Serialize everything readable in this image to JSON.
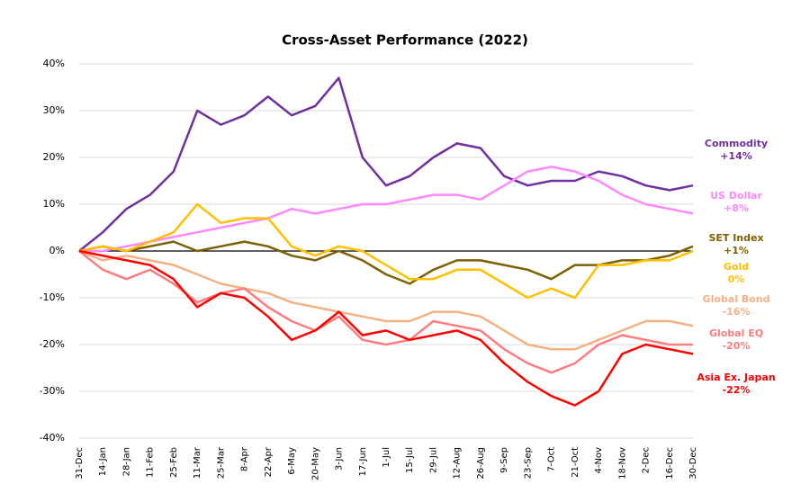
{
  "chart_data": {
    "type": "line",
    "title": "Cross-Asset Performance (2022)",
    "categories": [
      "31-Dec",
      "14-Jan",
      "28-Jan",
      "11-Feb",
      "25-Feb",
      "11-Mar",
      "25-Mar",
      "8-Apr",
      "22-Apr",
      "6-May",
      "20-May",
      "3-Jun",
      "17-Jun",
      "1-Jul",
      "15-Jul",
      "29-Jul",
      "12-Aug",
      "26-Aug",
      "9-Sep",
      "23-Sep",
      "7-Oct",
      "21-Oct",
      "4-Nov",
      "18-Nov",
      "2-Dec",
      "16-Dec",
      "30-Dec"
    ],
    "ylim": [
      -40,
      40
    ],
    "yticks": [
      {
        "value": -40,
        "label": "-40%"
      },
      {
        "value": -30,
        "label": "-30%"
      },
      {
        "value": -20,
        "label": "-20%"
      },
      {
        "value": -10,
        "label": "-10%"
      },
      {
        "value": 0,
        "label": "0%"
      },
      {
        "value": 10,
        "label": "10%"
      },
      {
        "value": 20,
        "label": "20%"
      },
      {
        "value": 30,
        "label": "30%"
      },
      {
        "value": 40,
        "label": "40%"
      }
    ],
    "grid": true,
    "series": [
      {
        "name": "Commodity",
        "color": "#7030a0",
        "end_label": "+14%",
        "values": [
          0,
          4,
          9,
          12,
          17,
          30,
          27,
          29,
          33,
          29,
          31,
          37,
          20,
          14,
          16,
          20,
          23,
          22,
          16,
          14,
          15,
          15,
          17,
          16,
          14,
          13,
          14
        ]
      },
      {
        "name": "US Dollar",
        "color": "#ff88ff",
        "end_label": "+8%",
        "values": [
          0,
          0,
          1,
          2,
          3,
          4,
          5,
          6,
          7,
          9,
          8,
          9,
          10,
          10,
          11,
          12,
          12,
          11,
          14,
          17,
          18,
          17,
          15,
          12,
          10,
          9,
          8
        ]
      },
      {
        "name": "SET Index",
        "color": "#7f6000",
        "end_label": "+1%",
        "values": [
          0,
          1,
          0,
          1,
          2,
          0,
          1,
          2,
          1,
          -1,
          -2,
          0,
          -2,
          -5,
          -7,
          -4,
          -2,
          -2,
          -3,
          -4,
          -6,
          -3,
          -3,
          -2,
          -2,
          -1,
          1
        ]
      },
      {
        "name": "Gold",
        "color": "#ffc000",
        "end_label": "0%",
        "values": [
          0,
          1,
          0,
          2,
          4,
          10,
          6,
          7,
          7,
          1,
          -1,
          1,
          0,
          -3,
          -6,
          -6,
          -4,
          -4,
          -7,
          -10,
          -8,
          -10,
          -3,
          -3,
          -2,
          -2,
          0
        ]
      },
      {
        "name": "Global Bond",
        "color": "#f4b183",
        "end_label": "-16%",
        "values": [
          0,
          -2,
          -1,
          -2,
          -3,
          -5,
          -7,
          -8,
          -9,
          -11,
          -12,
          -13,
          -14,
          -15,
          -15,
          -13,
          -13,
          -14,
          -17,
          -20,
          -21,
          -21,
          -19,
          -17,
          -15,
          -15,
          -16
        ]
      },
      {
        "name": "Global EQ",
        "color": "#ff7c80",
        "end_label": "-20%",
        "values": [
          0,
          -4,
          -6,
          -4,
          -7,
          -11,
          -9,
          -8,
          -12,
          -15,
          -17,
          -14,
          -19,
          -20,
          -19,
          -15,
          -16,
          -17,
          -21,
          -24,
          -26,
          -24,
          -20,
          -18,
          -19,
          -20,
          -20
        ]
      },
      {
        "name": "Asia Ex. Japan",
        "color": "#ff0000",
        "end_label": "-22%",
        "values": [
          0,
          -1,
          -2,
          -3,
          -6,
          -12,
          -9,
          -10,
          -14,
          -19,
          -17,
          -13,
          -18,
          -17,
          -19,
          -18,
          -17,
          -19,
          -24,
          -28,
          -31,
          -33,
          -30,
          -22,
          -20,
          -21,
          -22
        ]
      }
    ]
  }
}
